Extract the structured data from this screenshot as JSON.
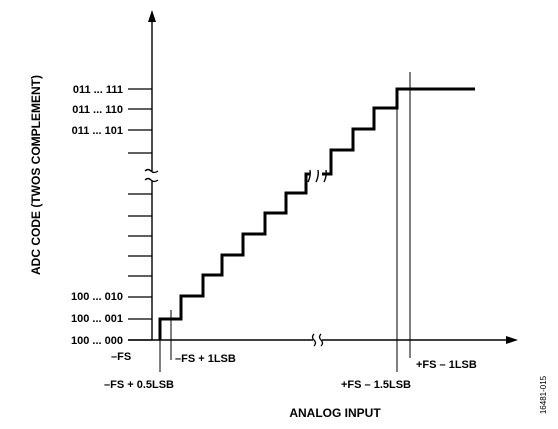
{
  "axes": {
    "x_title": "ANALOG INPUT",
    "y_title": "ADC CODE (TWOS COMPLEMENT)"
  },
  "y_labels": {
    "code_111": "011 ... 111",
    "code_110": "011 ... 110",
    "code_101": "011 ... 101",
    "code_010": "100 ... 010",
    "code_001": "100 ... 001",
    "code_000": "100 ... 000"
  },
  "x_labels": {
    "neg_fs": "–FS",
    "neg_fs_plus_1lsb": "–FS + 1LSB",
    "neg_fs_plus_half_lsb": "–FS + 0.5LSB",
    "pos_fs_minus_1_5lsb": "+FS – 1.5LSB",
    "pos_fs_minus_1lsb": "+FS – 1LSB"
  },
  "figure_id": "16481-015"
}
